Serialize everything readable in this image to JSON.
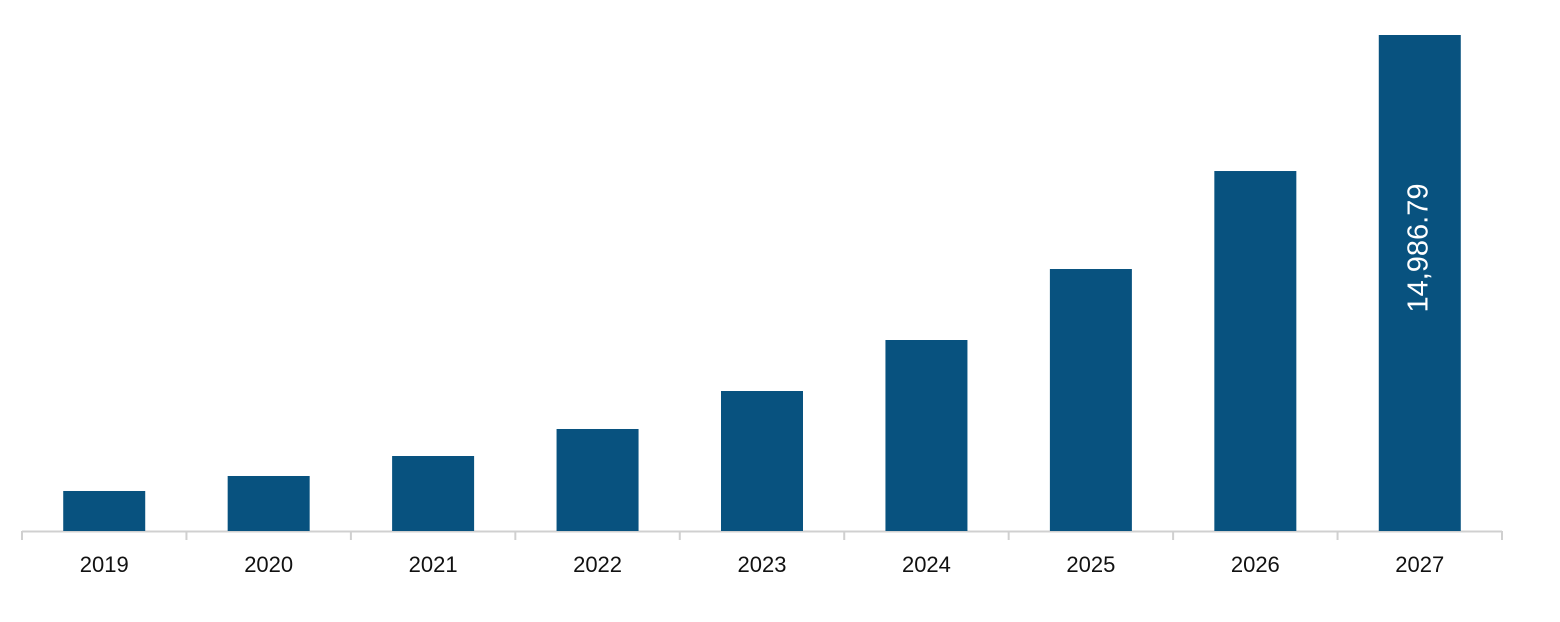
{
  "chart_data": {
    "type": "bar",
    "categories": [
      "2019",
      "2020",
      "2021",
      "2022",
      "2023",
      "2024",
      "2025",
      "2026",
      "2027"
    ],
    "values": [
      1209,
      1662,
      2266,
      3082,
      4230,
      5771,
      7916,
      10877,
      14986.79
    ],
    "value_labels": [
      null,
      null,
      null,
      null,
      null,
      null,
      null,
      null,
      "14,986.79"
    ],
    "color": "#08527f"
  }
}
